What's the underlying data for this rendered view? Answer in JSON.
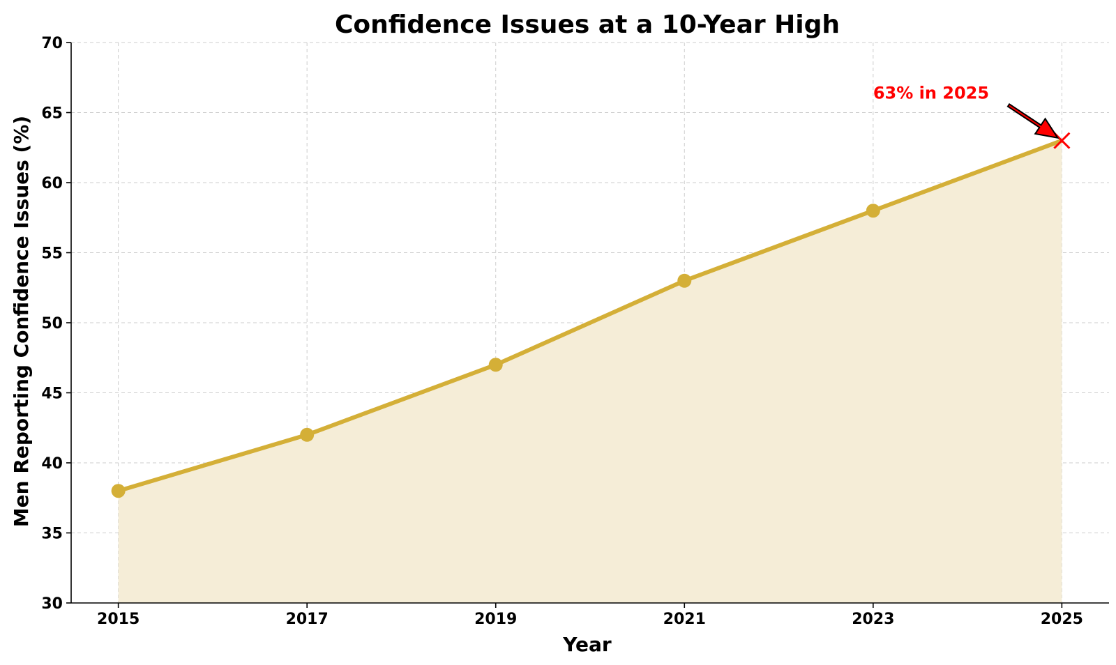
{
  "chart_data": {
    "type": "line",
    "title": "Confidence Issues at a 10-Year High",
    "xlabel": "Year",
    "ylabel": "Men Reporting Confidence Issues (%)",
    "x": [
      2015,
      2017,
      2019,
      2021,
      2023,
      2025
    ],
    "values": [
      38,
      42,
      47,
      53,
      58,
      63
    ],
    "xlim": [
      2014.5,
      2025.5
    ],
    "ylim": [
      30,
      70
    ],
    "xticks": [
      "2015",
      "2017",
      "2019",
      "2021",
      "2023",
      "2025"
    ],
    "yticks": [
      30,
      35,
      40,
      45,
      50,
      55,
      60,
      65,
      70
    ],
    "grid": true,
    "area_fill": true,
    "line_color": "#D4AF37",
    "fill_color": "#F5EDD7",
    "annotation": {
      "text": "63% in 2025",
      "x": 2025,
      "y": 63,
      "text_x": 2023,
      "text_y": 66,
      "color": "#FF0000",
      "marker": "x"
    }
  }
}
